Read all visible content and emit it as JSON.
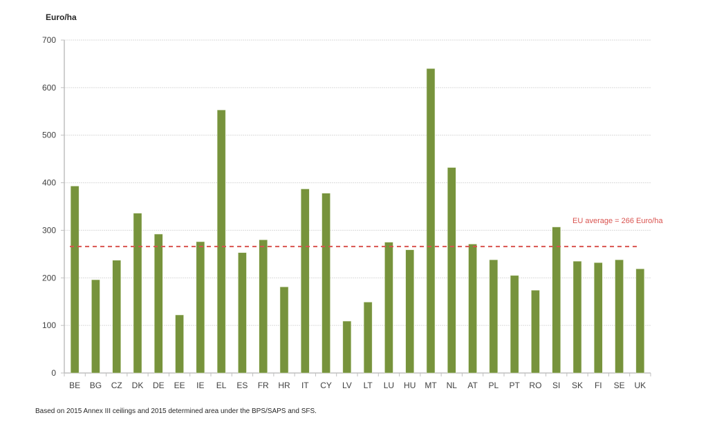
{
  "chart_data": {
    "type": "bar",
    "title": "",
    "xlabel": "",
    "ylabel": "Euro/ha",
    "ylim": [
      0,
      700
    ],
    "yticks": [
      0,
      100,
      200,
      300,
      400,
      500,
      600,
      700
    ],
    "grid": true,
    "categories": [
      "BE",
      "BG",
      "CZ",
      "DK",
      "DE",
      "EE",
      "IE",
      "EL",
      "ES",
      "FR",
      "HR",
      "IT",
      "CY",
      "LV",
      "LT",
      "LU",
      "HU",
      "MT",
      "NL",
      "AT",
      "PL",
      "PT",
      "RO",
      "SI",
      "SK",
      "FI",
      "SE",
      "UK"
    ],
    "values": [
      393,
      196,
      237,
      336,
      292,
      122,
      276,
      553,
      253,
      280,
      181,
      387,
      378,
      109,
      149,
      275,
      259,
      640,
      432,
      271,
      238,
      205,
      174,
      307,
      235,
      232,
      238,
      219
    ],
    "reference_line": {
      "value": 266,
      "label": "EU average = 266 Euro/ha",
      "style": "dashed",
      "color": "#d9534f"
    },
    "bar_color": "#77933c",
    "footnote": "Based on 2015 Annex III ceilings and 2015 determined area under the BPS/SAPS and SFS."
  }
}
